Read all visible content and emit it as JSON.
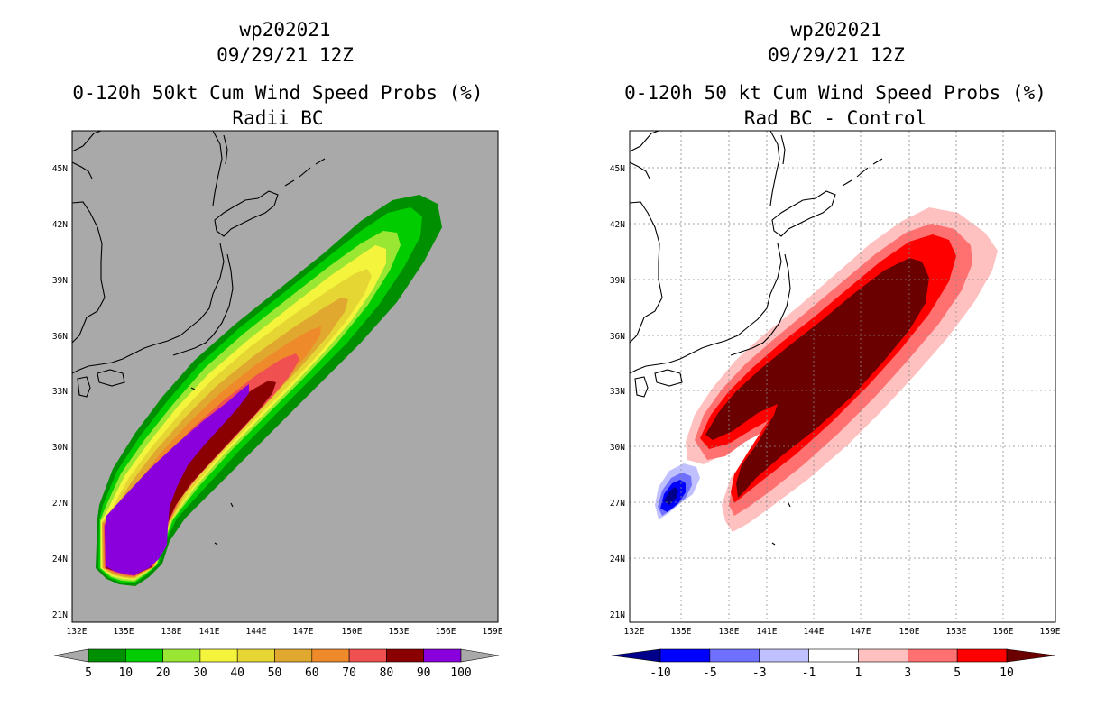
{
  "left_panel": {
    "storm_id": "wp202021",
    "datetime": "09/29/21 12Z",
    "title": "0-120h 50kt Cum Wind Speed Probs (%)",
    "subtitle": "Radii BC",
    "lat_labels": [
      "45N",
      "42N",
      "39N",
      "36N",
      "33N",
      "30N",
      "27N",
      "24N",
      "21N"
    ],
    "lon_labels": [
      "132E",
      "135E",
      "138E",
      "141E",
      "144E",
      "147E",
      "150E",
      "153E",
      "156E",
      "159E"
    ],
    "colorbar": {
      "labels": [
        "5",
        "10",
        "20",
        "30",
        "40",
        "50",
        "60",
        "70",
        "80",
        "90",
        "100"
      ],
      "colors": [
        "#008f00",
        "#00cc00",
        "#99e633",
        "#f4f43c",
        "#e6d633",
        "#e0a82e",
        "#ef8a2b",
        "#f05050",
        "#8b0000",
        "#8a00dc"
      ]
    },
    "map_bg": "#a9a9a9"
  },
  "right_panel": {
    "storm_id": "wp202021",
    "datetime": "09/29/21 12Z",
    "title": "0-120h 50 kt Cum Wind Speed Probs (%)",
    "subtitle": "Rad BC - Control",
    "lat_labels": [
      "45N",
      "42N",
      "39N",
      "36N",
      "33N",
      "30N",
      "27N",
      "24N",
      "21N"
    ],
    "lon_labels": [
      "132E",
      "135E",
      "138E",
      "141E",
      "144E",
      "147E",
      "150E",
      "153E",
      "156E",
      "159E"
    ],
    "colorbar": {
      "labels": [
        "-10",
        "-5",
        "-3",
        "-1",
        "1",
        "3",
        "5",
        "10"
      ],
      "colors": [
        "#00008b",
        "#0000ff",
        "#7070ff",
        "#c0c0ff",
        "#ffffff",
        "#ffc0c0",
        "#ff7070",
        "#ff0000",
        "#6b0000"
      ]
    },
    "map_bg": "#ffffff"
  }
}
